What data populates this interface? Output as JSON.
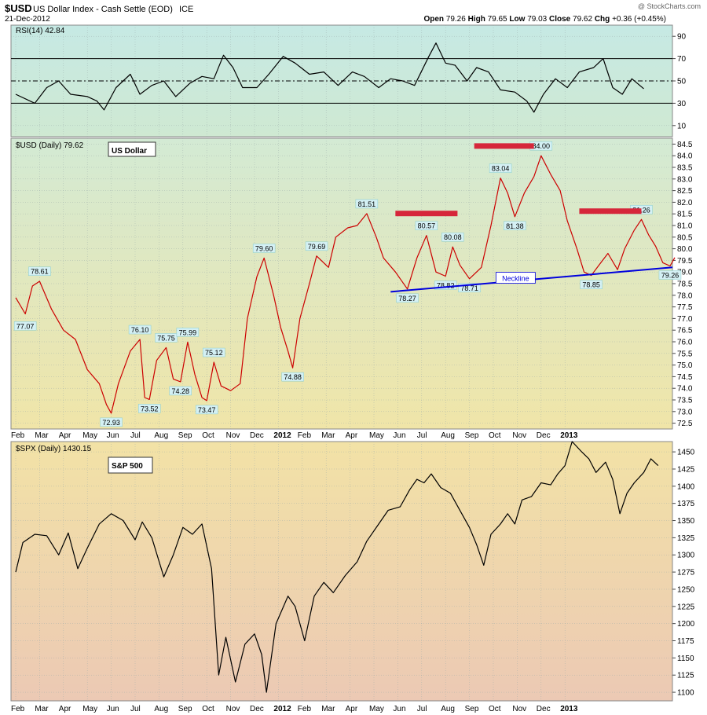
{
  "header": {
    "symbol": "$USD",
    "description": "US Dollar Index - Cash Settle (EOD)",
    "exchange": "ICE",
    "date": "21-Dec-2012",
    "watermark": "@ StockCharts.com",
    "open_label": "Open",
    "open": "79.26",
    "high_label": "High",
    "high": "79.65",
    "low_label": "Low",
    "low": "79.03",
    "close_label": "Close",
    "close": "79.62",
    "chg_label": "Chg",
    "chg": "+0.36 (+0.45%)"
  },
  "colors": {
    "usd_line": "#cc0000",
    "rsi_line": "#000000",
    "spx_line": "#000000",
    "neckline": "#0000dd",
    "marker_bar": "#d6263a",
    "label_fill": "#d4f0f4"
  },
  "chart_data": [
    {
      "type": "line",
      "title": "RSI(14) 42.84",
      "yticks": [
        10,
        30,
        50,
        70,
        90
      ],
      "ylim": [
        0,
        100
      ],
      "reference_lines": [
        30,
        50,
        70
      ],
      "points": [
        [
          0,
          38
        ],
        [
          0.8,
          30
        ],
        [
          1.3,
          44
        ],
        [
          1.8,
          50
        ],
        [
          2.3,
          38
        ],
        [
          3,
          36
        ],
        [
          3.4,
          32
        ],
        [
          3.7,
          24
        ],
        [
          4.2,
          44
        ],
        [
          4.8,
          56
        ],
        [
          5.2,
          38
        ],
        [
          5.7,
          46
        ],
        [
          6.2,
          50
        ],
        [
          6.7,
          36
        ],
        [
          7.3,
          48
        ],
        [
          7.8,
          54
        ],
        [
          8.3,
          52
        ],
        [
          8.7,
          73
        ],
        [
          9.1,
          62
        ],
        [
          9.5,
          44
        ],
        [
          10.1,
          44
        ],
        [
          10.6,
          56
        ],
        [
          11.2,
          72
        ],
        [
          11.7,
          66
        ],
        [
          12.3,
          56
        ],
        [
          12.9,
          58
        ],
        [
          13.5,
          46
        ],
        [
          14.1,
          58
        ],
        [
          14.6,
          54
        ],
        [
          15.2,
          44
        ],
        [
          15.7,
          52
        ],
        [
          16.2,
          50
        ],
        [
          16.7,
          46
        ],
        [
          17.3,
          72
        ],
        [
          17.6,
          84
        ],
        [
          18,
          66
        ],
        [
          18.4,
          64
        ],
        [
          18.9,
          50
        ],
        [
          19.3,
          62
        ],
        [
          19.8,
          58
        ],
        [
          20.3,
          42
        ],
        [
          20.9,
          40
        ],
        [
          21.4,
          32
        ],
        [
          21.7,
          22
        ],
        [
          22.1,
          38
        ],
        [
          22.6,
          52
        ],
        [
          23.1,
          44
        ],
        [
          23.6,
          58
        ],
        [
          24.2,
          62
        ],
        [
          24.6,
          70
        ],
        [
          25,
          44
        ],
        [
          25.4,
          38
        ],
        [
          25.8,
          52
        ],
        [
          26.3,
          43
        ]
      ],
      "xlabels": [
        "Feb",
        "Mar",
        "Apr",
        "May",
        "Jun",
        "Jul",
        "Aug",
        "Sep",
        "Oct",
        "Nov",
        "Dec",
        "2012",
        "Feb",
        "Mar",
        "Apr",
        "May",
        "Jun",
        "Jul",
        "Aug",
        "Sep",
        "Oct",
        "Nov",
        "Dec",
        "2013"
      ]
    },
    {
      "type": "line",
      "title": "$USD (Daily) 79.62",
      "legend": "US Dollar",
      "yticks": [
        72.5,
        73.0,
        73.5,
        74.0,
        74.5,
        75.0,
        75.5,
        76.0,
        76.5,
        77.0,
        77.5,
        78.0,
        78.5,
        79.0,
        79.5,
        80.0,
        80.5,
        81.0,
        81.5,
        82.0,
        82.5,
        83.0,
        83.5,
        84.0,
        84.5
      ],
      "ylim": [
        72.25,
        84.75
      ],
      "points": [
        [
          0,
          77.9
        ],
        [
          0.4,
          77.2
        ],
        [
          0.7,
          78.4
        ],
        [
          1,
          78.6
        ],
        [
          1.5,
          77.4
        ],
        [
          2,
          76.5
        ],
        [
          2.5,
          76.1
        ],
        [
          3,
          74.8
        ],
        [
          3.5,
          74.2
        ],
        [
          3.8,
          73.3
        ],
        [
          4,
          72.93
        ],
        [
          4.3,
          74.2
        ],
        [
          4.8,
          75.6
        ],
        [
          5.2,
          76.1
        ],
        [
          5.4,
          73.6
        ],
        [
          5.6,
          73.52
        ],
        [
          5.9,
          75.2
        ],
        [
          6.3,
          75.75
        ],
        [
          6.6,
          74.4
        ],
        [
          6.9,
          74.28
        ],
        [
          7.2,
          75.99
        ],
        [
          7.5,
          74.6
        ],
        [
          7.8,
          73.6
        ],
        [
          8,
          73.47
        ],
        [
          8.3,
          75.12
        ],
        [
          8.6,
          74.1
        ],
        [
          9,
          73.9
        ],
        [
          9.4,
          74.2
        ],
        [
          9.7,
          77.0
        ],
        [
          10.1,
          78.8
        ],
        [
          10.4,
          79.6
        ],
        [
          10.8,
          78.0
        ],
        [
          11.1,
          76.6
        ],
        [
          11.4,
          75.6
        ],
        [
          11.6,
          74.88
        ],
        [
          11.9,
          77.0
        ],
        [
          12.3,
          78.5
        ],
        [
          12.6,
          79.69
        ],
        [
          13.1,
          79.2
        ],
        [
          13.4,
          80.5
        ],
        [
          13.9,
          80.9
        ],
        [
          14.3,
          81.0
        ],
        [
          14.7,
          81.51
        ],
        [
          15.1,
          80.5
        ],
        [
          15.4,
          79.6
        ],
        [
          15.9,
          79.0
        ],
        [
          16.4,
          78.27
        ],
        [
          16.8,
          79.6
        ],
        [
          17.2,
          80.57
        ],
        [
          17.6,
          79.0
        ],
        [
          18,
          78.82
        ],
        [
          18.3,
          80.08
        ],
        [
          18.6,
          79.3
        ],
        [
          19,
          78.71
        ],
        [
          19.5,
          79.2
        ],
        [
          19.9,
          81.0
        ],
        [
          20.3,
          83.04
        ],
        [
          20.6,
          82.4
        ],
        [
          20.9,
          81.38
        ],
        [
          21.3,
          82.4
        ],
        [
          21.7,
          83.1
        ],
        [
          22,
          84.0
        ],
        [
          22.4,
          83.2
        ],
        [
          22.8,
          82.5
        ],
        [
          23.1,
          81.2
        ],
        [
          23.5,
          80.0
        ],
        [
          23.8,
          79.0
        ],
        [
          24.1,
          78.85
        ],
        [
          24.5,
          79.4
        ],
        [
          24.8,
          79.8
        ],
        [
          25.2,
          79.1
        ],
        [
          25.5,
          80.0
        ],
        [
          25.9,
          80.8
        ],
        [
          26.2,
          81.26
        ],
        [
          26.5,
          80.6
        ],
        [
          26.8,
          80.1
        ],
        [
          27.1,
          79.4
        ],
        [
          27.4,
          79.26
        ],
        [
          27.6,
          79.62
        ]
      ],
      "value_labels": [
        "77.07",
        "78.61",
        "72.93",
        "76.10",
        "75.75",
        "73.52",
        "74.28",
        "75.99",
        "73.47",
        "75.12",
        "79.60",
        "74.88",
        "79.69",
        "81.51",
        "78.27",
        "80.57",
        "78.82",
        "80.08",
        "78.71",
        "83.04",
        "81.38",
        "84.00",
        "78.85",
        "81.26",
        "79.26"
      ],
      "annotation": "Neckline",
      "xlabels": [
        "Feb",
        "Mar",
        "Apr",
        "May",
        "Jun",
        "Jul",
        "Aug",
        "Sep",
        "Oct",
        "Nov",
        "Dec",
        "2012",
        "Feb",
        "Mar",
        "Apr",
        "May",
        "Jun",
        "Jul",
        "Aug",
        "Sep",
        "Oct",
        "Nov",
        "Dec",
        "2013"
      ]
    },
    {
      "type": "line",
      "title": "$SPX (Daily) 1430.15",
      "legend": "S&P 500",
      "yticks": [
        1100,
        1125,
        1150,
        1175,
        1200,
        1225,
        1250,
        1275,
        1300,
        1325,
        1350,
        1375,
        1400,
        1425,
        1450
      ],
      "ylim": [
        1087.5,
        1465
      ],
      "points": [
        [
          0,
          1275
        ],
        [
          0.3,
          1318
        ],
        [
          0.8,
          1330
        ],
        [
          1.3,
          1328
        ],
        [
          1.8,
          1300
        ],
        [
          2.2,
          1332
        ],
        [
          2.6,
          1280
        ],
        [
          3,
          1310
        ],
        [
          3.5,
          1345
        ],
        [
          4,
          1360
        ],
        [
          4.5,
          1350
        ],
        [
          5,
          1322
        ],
        [
          5.3,
          1348
        ],
        [
          5.7,
          1325
        ],
        [
          6.2,
          1268
        ],
        [
          6.6,
          1300
        ],
        [
          7,
          1340
        ],
        [
          7.4,
          1330
        ],
        [
          7.8,
          1345
        ],
        [
          8.2,
          1280
        ],
        [
          8.5,
          1125
        ],
        [
          8.8,
          1180
        ],
        [
          9.2,
          1115
        ],
        [
          9.6,
          1170
        ],
        [
          10,
          1185
        ],
        [
          10.3,
          1155
        ],
        [
          10.5,
          1100
        ],
        [
          10.9,
          1200
        ],
        [
          11.4,
          1240
        ],
        [
          11.7,
          1225
        ],
        [
          12.1,
          1175
        ],
        [
          12.5,
          1240
        ],
        [
          12.9,
          1260
        ],
        [
          13.3,
          1245
        ],
        [
          13.8,
          1270
        ],
        [
          14.3,
          1290
        ],
        [
          14.7,
          1320
        ],
        [
          15.2,
          1345
        ],
        [
          15.6,
          1365
        ],
        [
          16.1,
          1370
        ],
        [
          16.5,
          1395
        ],
        [
          16.8,
          1410
        ],
        [
          17.1,
          1405
        ],
        [
          17.4,
          1418
        ],
        [
          17.8,
          1398
        ],
        [
          18.2,
          1390
        ],
        [
          18.6,
          1365
        ],
        [
          19,
          1340
        ],
        [
          19.3,
          1315
        ],
        [
          19.6,
          1285
        ],
        [
          19.9,
          1330
        ],
        [
          20.3,
          1345
        ],
        [
          20.6,
          1360
        ],
        [
          20.9,
          1345
        ],
        [
          21.2,
          1380
        ],
        [
          21.6,
          1385
        ],
        [
          22,
          1405
        ],
        [
          22.4,
          1402
        ],
        [
          22.7,
          1418
        ],
        [
          23,
          1430
        ],
        [
          23.3,
          1465
        ],
        [
          23.7,
          1450
        ],
        [
          24,
          1440
        ],
        [
          24.3,
          1420
        ],
        [
          24.7,
          1435
        ],
        [
          25,
          1410
        ],
        [
          25.3,
          1360
        ],
        [
          25.6,
          1390
        ],
        [
          25.9,
          1405
        ],
        [
          26.3,
          1420
        ],
        [
          26.6,
          1440
        ],
        [
          26.9,
          1430
        ]
      ],
      "xlabels": [
        "Feb",
        "Mar",
        "Apr",
        "May",
        "Jun",
        "Jul",
        "Aug",
        "Sep",
        "Oct",
        "Nov",
        "Dec",
        "2012",
        "Feb",
        "Mar",
        "Apr",
        "May",
        "Jun",
        "Jul",
        "Aug",
        "Sep",
        "Oct",
        "Nov",
        "Dec",
        "2013"
      ]
    }
  ]
}
